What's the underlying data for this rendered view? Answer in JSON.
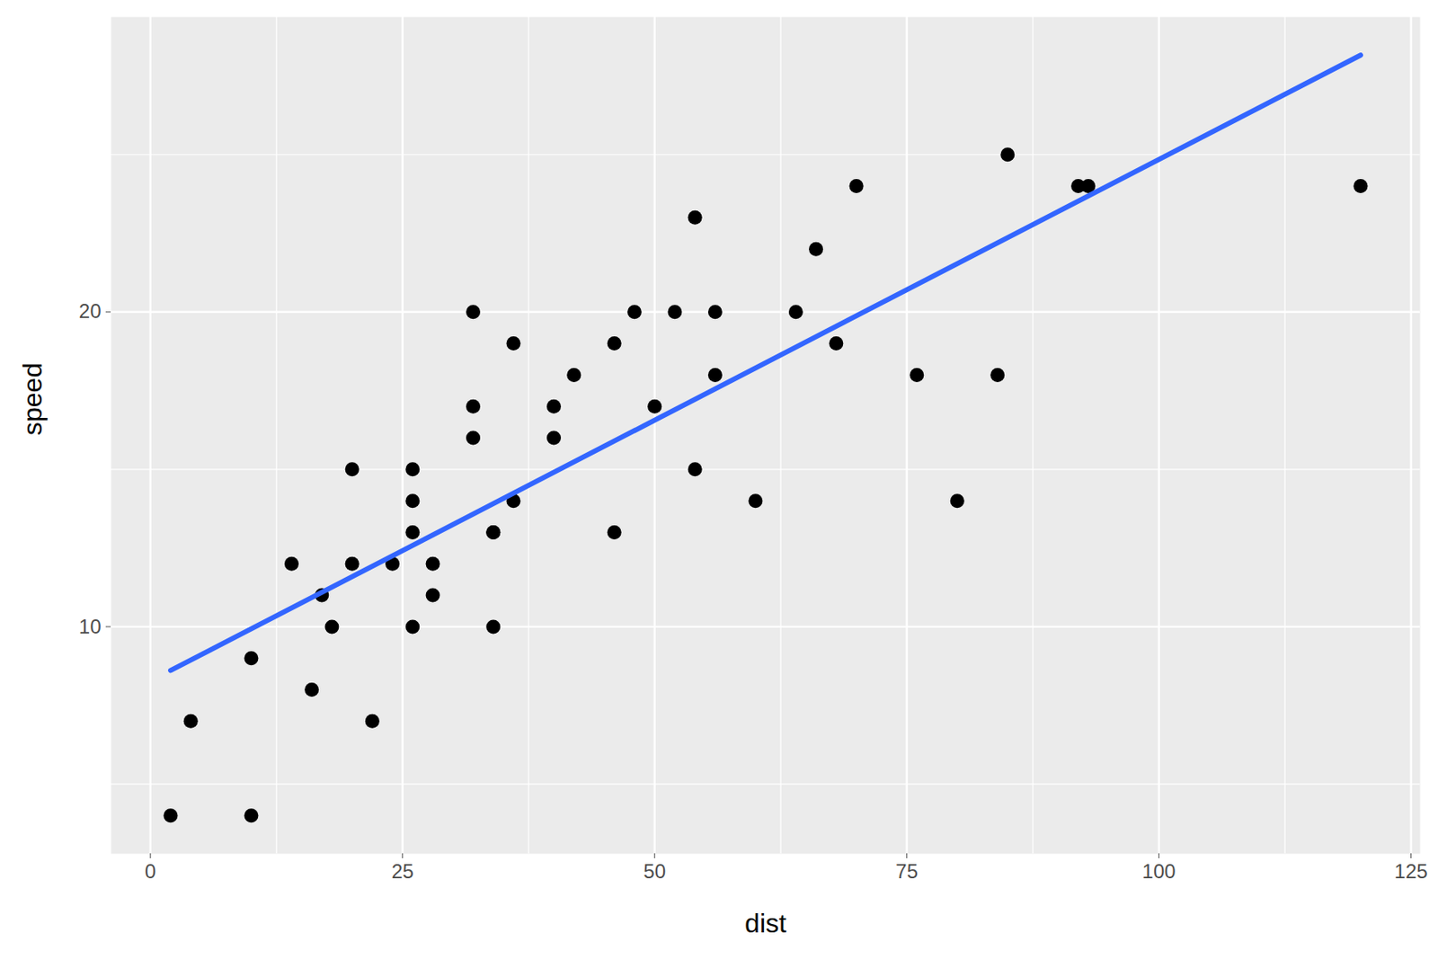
{
  "chart_data": {
    "type": "scatter",
    "x_label": "dist",
    "y_label": "speed",
    "x": [
      2,
      10,
      4,
      22,
      16,
      10,
      18,
      26,
      34,
      17,
      28,
      14,
      20,
      24,
      28,
      26,
      34,
      34,
      46,
      26,
      36,
      60,
      80,
      20,
      26,
      54,
      32,
      40,
      32,
      40,
      50,
      42,
      56,
      76,
      84,
      36,
      46,
      68,
      32,
      48,
      52,
      56,
      64,
      66,
      54,
      70,
      92,
      93,
      120,
      85
    ],
    "values": [
      4,
      4,
      7,
      7,
      8,
      9,
      10,
      10,
      10,
      11,
      11,
      12,
      12,
      12,
      12,
      13,
      13,
      13,
      13,
      14,
      14,
      14,
      14,
      15,
      15,
      15,
      16,
      16,
      17,
      17,
      17,
      18,
      18,
      18,
      18,
      19,
      19,
      19,
      20,
      20,
      20,
      20,
      20,
      22,
      23,
      24,
      24,
      24,
      24,
      25
    ],
    "color": "#000000",
    "marker": "circle",
    "trend_line": {
      "x": [
        2,
        120
      ],
      "values": [
        8.61,
        28.16
      ],
      "color": "#3366FF",
      "line_style": "solid"
    },
    "xlim": [
      -3.9,
      125.9
    ],
    "ylim": [
      2.79,
      29.37
    ],
    "xticks": [
      0,
      25,
      50,
      75,
      100,
      125
    ],
    "yticks": [
      10,
      20
    ],
    "grid": true
  }
}
